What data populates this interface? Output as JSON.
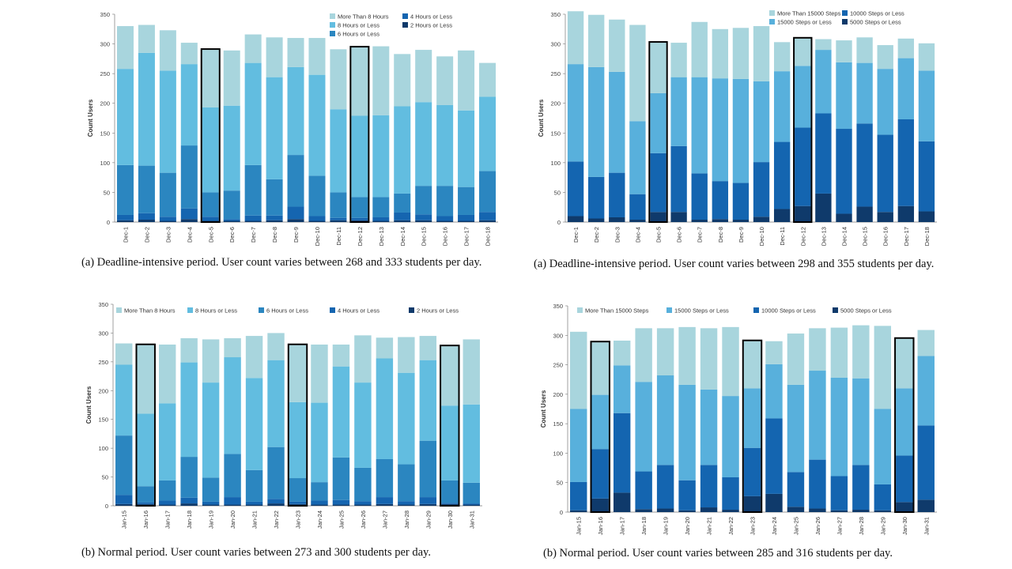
{
  "colors": {
    "sleep": [
      "#a8d5dd",
      "#62bde0",
      "#2b86c0",
      "#1565b0",
      "#0f3a6b"
    ],
    "steps": [
      "#a8d5dd",
      "#58b0dc",
      "#1465b0",
      "#0f3a6b"
    ],
    "axis": "#777777",
    "highlight": "#000000"
  },
  "chart_data": [
    {
      "type": "bar",
      "stacked": true,
      "ylabel": "Count Users",
      "ylim": [
        0,
        350
      ],
      "yticks": [
        0,
        50,
        100,
        150,
        200,
        250,
        300,
        350
      ],
      "legend_placement": "top-right",
      "categories": [
        "Dec-1",
        "Dec-2",
        "Dec-3",
        "Dec-4",
        "Dec-5",
        "Dec-6",
        "Dec-7",
        "Dec-8",
        "Dec-9",
        "Dec-10",
        "Dec-11",
        "Dec-12",
        "Dec-13",
        "Dec-14",
        "Dec-15",
        "Dec-16",
        "Dec-17",
        "Dec-18"
      ],
      "highlighted": [
        "Dec-5",
        "Dec-12"
      ],
      "series": [
        {
          "name": "2 Hours or Less",
          "values": [
            3,
            4,
            2,
            5,
            2,
            2,
            2,
            3,
            5,
            2,
            3,
            3,
            2,
            3,
            3,
            2,
            2,
            3
          ]
        },
        {
          "name": "4 Hours or Less",
          "values": [
            9,
            11,
            7,
            18,
            7,
            3,
            9,
            8,
            21,
            8,
            4,
            4,
            6,
            13,
            10,
            8,
            10,
            14
          ]
        },
        {
          "name": "6 Hours or Less",
          "values": [
            84,
            80,
            74,
            106,
            41,
            48,
            85,
            61,
            87,
            68,
            43,
            35,
            34,
            32,
            48,
            51,
            47,
            69
          ]
        },
        {
          "name": "8 Hours or Less",
          "values": [
            162,
            190,
            172,
            137,
            143,
            143,
            172,
            172,
            148,
            170,
            140,
            137,
            138,
            147,
            141,
            136,
            129,
            125
          ]
        },
        {
          "name": "More Than 8 Hours",
          "values": [
            72,
            47,
            68,
            36,
            97,
            93,
            48,
            67,
            49,
            62,
            101,
            115,
            116,
            88,
            88,
            82,
            101,
            57
          ]
        }
      ],
      "legend_order": [
        "More Than 8 Hours",
        "4 Hours or Less",
        "8 Hours or Less",
        "2 Hours or Less",
        "6 Hours or Less"
      ]
    },
    {
      "type": "bar",
      "stacked": true,
      "ylabel": "Count Users",
      "ylim": [
        0,
        350
      ],
      "yticks": [
        0,
        50,
        100,
        150,
        200,
        250,
        300,
        350
      ],
      "legend_placement": "top-right",
      "categories": [
        "Dec-1",
        "Dec-2",
        "Dec-3",
        "Dec-4",
        "Dec-5",
        "Dec-6",
        "Dec-7",
        "Dec-8",
        "Dec-9",
        "Dec-10",
        "Dec-11",
        "Dec-12",
        "Dec-13",
        "Dec-14",
        "Dec-15",
        "Dec-16",
        "Dec-17",
        "Dec-18"
      ],
      "highlighted": [
        "Dec-5",
        "Dec-12"
      ],
      "series": [
        {
          "name": "5000 Steps or Less",
          "values": [
            10,
            6,
            8,
            4,
            17,
            17,
            4,
            5,
            4,
            9,
            22,
            27,
            48,
            14,
            26,
            17,
            27,
            18
          ]
        },
        {
          "name": "10000 Steps or Less",
          "values": [
            92,
            70,
            75,
            43,
            99,
            111,
            78,
            64,
            62,
            92,
            113,
            132,
            135,
            143,
            140,
            130,
            146,
            118
          ]
        },
        {
          "name": "15000 Steps or Less",
          "values": [
            164,
            185,
            170,
            123,
            101,
            116,
            162,
            173,
            175,
            136,
            119,
            104,
            107,
            112,
            102,
            111,
            103,
            119
          ]
        },
        {
          "name": "More Than 15000 Steps",
          "values": [
            89,
            88,
            88,
            162,
            85,
            58,
            93,
            83,
            86,
            93,
            49,
            46,
            18,
            37,
            43,
            40,
            33,
            46
          ]
        }
      ],
      "legend_order": [
        "More Than 15000 Steps",
        "10000 Steps or Less",
        "15000 Steps or Less",
        "5000 Steps or Less"
      ]
    },
    {
      "type": "bar",
      "stacked": true,
      "ylabel": "Count Users",
      "ylim": [
        0,
        350
      ],
      "yticks": [
        0,
        50,
        100,
        150,
        200,
        250,
        300,
        350
      ],
      "legend_placement": "top",
      "categories": [
        "Jan-15",
        "Jan-16",
        "Jan-17",
        "Jan-18",
        "Jan-19",
        "Jan-20",
        "Jan-21",
        "Jan-22",
        "Jan-23",
        "Jan-24",
        "Jan-25",
        "Jan-26",
        "Jan-27",
        "Jan-28",
        "Jan-29",
        "Jan-30",
        "Jan-31"
      ],
      "highlighted": [
        "Jan-16",
        "Jan-23",
        "Jan-30"
      ],
      "series": [
        {
          "name": "2 Hours or Less",
          "values": [
            3,
            3,
            2,
            4,
            2,
            2,
            2,
            4,
            3,
            2,
            2,
            2,
            3,
            2,
            3,
            3,
            2
          ]
        },
        {
          "name": "4 Hours or Less",
          "values": [
            16,
            3,
            7,
            10,
            5,
            13,
            5,
            8,
            4,
            7,
            8,
            6,
            12,
            6,
            12,
            2,
            2
          ]
        },
        {
          "name": "6 Hours or Less",
          "values": [
            103,
            28,
            35,
            71,
            42,
            75,
            55,
            90,
            41,
            32,
            74,
            58,
            66,
            64,
            98,
            39,
            36
          ]
        },
        {
          "name": "8 Hours or Less",
          "values": [
            123,
            126,
            134,
            164,
            165,
            168,
            160,
            151,
            132,
            138,
            158,
            148,
            175,
            159,
            140,
            130,
            136
          ]
        },
        {
          "name": "More Than 8 Hours",
          "values": [
            37,
            119,
            102,
            42,
            75,
            33,
            73,
            47,
            99,
            101,
            38,
            82,
            36,
            62,
            42,
            103,
            113
          ]
        }
      ],
      "legend_order": [
        "More Than 8 Hours",
        "8 Hours or Less",
        "6 Hours or Less",
        "4 Hours or Less",
        "2 Hours or Less"
      ]
    },
    {
      "type": "bar",
      "stacked": true,
      "ylabel": "Count Users",
      "ylim": [
        0,
        350
      ],
      "yticks": [
        0,
        50,
        100,
        150,
        200,
        250,
        300,
        350
      ],
      "legend_placement": "top",
      "categories": [
        "Jan-15",
        "Jan-16",
        "Jan-17",
        "Jan-18",
        "Jan-19",
        "Jan-20",
        "Jan-21",
        "Jan-22",
        "Jan-23",
        "Jan-24",
        "Jan-25",
        "Jan-26",
        "Jan-27",
        "Jan-28",
        "Jan-29",
        "Jan-30",
        "Jan-31"
      ],
      "highlighted": [
        "Jan-16",
        "Jan-23",
        "Jan-30"
      ],
      "series": [
        {
          "name": "5000 Steps or Less",
          "values": [
            3,
            23,
            33,
            5,
            6,
            3,
            8,
            4,
            27,
            31,
            9,
            6,
            3,
            4,
            3,
            17,
            21
          ]
        },
        {
          "name": "10000 Steps or Less",
          "values": [
            48,
            84,
            135,
            64,
            74,
            51,
            72,
            55,
            82,
            128,
            59,
            83,
            58,
            76,
            44,
            79,
            126
          ]
        },
        {
          "name": "15000 Steps or Less",
          "values": [
            124,
            92,
            81,
            152,
            152,
            162,
            128,
            138,
            101,
            92,
            148,
            151,
            167,
            147,
            128,
            114,
            118
          ]
        },
        {
          "name": "More Than 15000 Steps",
          "values": [
            131,
            89,
            42,
            91,
            80,
            98,
            104,
            117,
            80,
            39,
            87,
            72,
            85,
            90,
            141,
            84,
            44
          ]
        }
      ],
      "legend_order": [
        "More Than 15000 Steps",
        "15000 Steps or Less",
        "10000 Steps or Less",
        "5000 Steps or Less"
      ]
    }
  ],
  "captions": [
    "(a) Deadline-intensive period.  User count varies between 268 and 333 students per day.",
    "(a) Deadline-intensive period.  User count varies between 298 and 355 students per day.",
    "(b) Normal period.  User count varies between 273 and 300 students per day.",
    "(b) Normal period.  User count varies between 285 and 316 students per day."
  ]
}
